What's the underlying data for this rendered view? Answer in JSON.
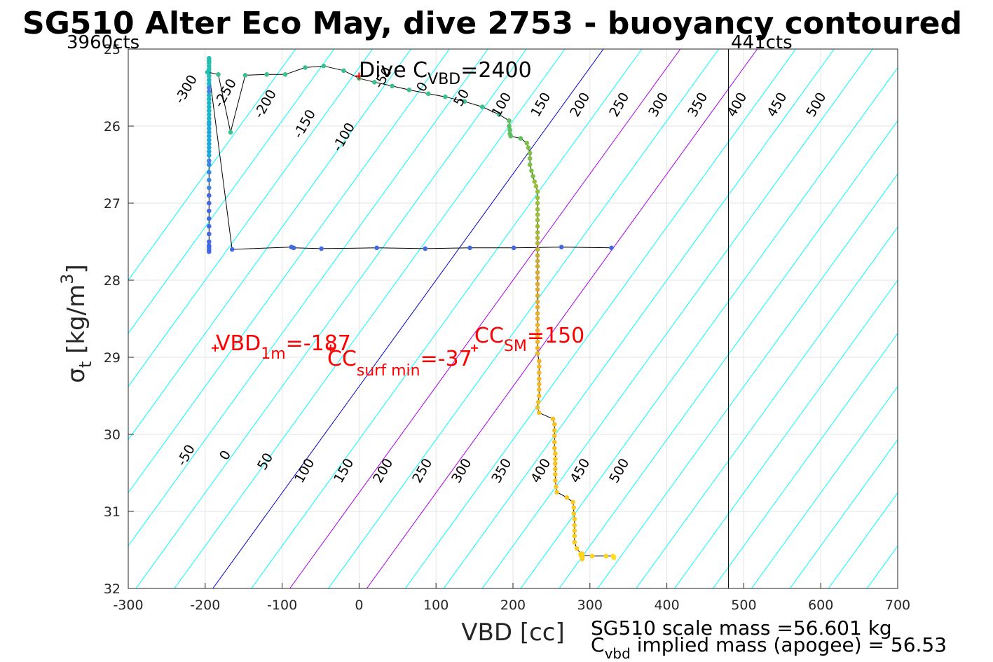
{
  "chart_data": {
    "type": "scatter",
    "title": "SG510 Alter Eco May, dive 2753 - buoyancy contoured",
    "xlabel": "VBD [cc]",
    "ylabel": {
      "main": "σ",
      "sub": "t",
      "rest": " [kg/m",
      "sup": "3",
      "end": "]"
    },
    "xlim": [
      -300,
      700
    ],
    "ylim": [
      25,
      32
    ],
    "y_reversed": true,
    "grid": true,
    "x_ticks": [
      "-300",
      "-200",
      "-100",
      "0",
      "100",
      "200",
      "300",
      "400",
      "500",
      "600",
      "700"
    ],
    "y_ticks": [
      "25",
      "26",
      "27",
      "28",
      "29",
      "30",
      "31",
      "32"
    ],
    "corner_left": "3960cts",
    "corner_right": "441cts",
    "vertical_line_x": 480,
    "buoyancy_contours": {
      "color_default": "#00ffff",
      "color_zero": "#0000cc",
      "color_highlight": "#aa00ee",
      "highlight_levels": [
        100,
        200
      ],
      "levels": [
        -400,
        -350,
        -300,
        -250,
        -200,
        -150,
        -100,
        -50,
        0,
        50,
        100,
        150,
        200,
        250,
        300,
        350,
        400,
        450,
        500,
        550,
        600,
        650,
        700,
        750,
        800,
        850,
        900,
        950,
        1000,
        1050
      ]
    },
    "contour_labels": [
      {
        "text": "-300",
        "x": -220,
        "y": 25.55
      },
      {
        "text": "-250",
        "x": -169,
        "y": 25.6
      },
      {
        "text": "-200",
        "x": -117,
        "y": 25.74
      },
      {
        "text": "-150",
        "x": -66,
        "y": 26.0
      },
      {
        "text": "-100",
        "x": -15,
        "y": 26.17
      },
      {
        "text": "-50",
        "x": 36,
        "y": 25.4
      },
      {
        "text": "0",
        "x": 87,
        "y": 25.52
      },
      {
        "text": "50",
        "x": 138,
        "y": 25.66
      },
      {
        "text": "100",
        "x": 190,
        "y": 25.75
      },
      {
        "text": "150",
        "x": 241,
        "y": 25.75
      },
      {
        "text": "200",
        "x": 292,
        "y": 25.75
      },
      {
        "text": "250",
        "x": 343,
        "y": 25.75
      },
      {
        "text": "300",
        "x": 394,
        "y": 25.75
      },
      {
        "text": "350",
        "x": 445,
        "y": 25.75
      },
      {
        "text": "400",
        "x": 496,
        "y": 25.75
      },
      {
        "text": "450",
        "x": 548,
        "y": 25.75
      },
      {
        "text": "500",
        "x": 599,
        "y": 25.75
      },
      {
        "text": "-50",
        "x": -220,
        "y": 30.3
      },
      {
        "text": "0",
        "x": -169,
        "y": 30.3
      },
      {
        "text": "50",
        "x": -117,
        "y": 30.38
      },
      {
        "text": "100",
        "x": -66,
        "y": 30.5
      },
      {
        "text": "150",
        "x": -15,
        "y": 30.5
      },
      {
        "text": "200",
        "x": 36,
        "y": 30.5
      },
      {
        "text": "250",
        "x": 87,
        "y": 30.5
      },
      {
        "text": "300",
        "x": 138,
        "y": 30.5
      },
      {
        "text": "350",
        "x": 190,
        "y": 30.5
      },
      {
        "text": "400",
        "x": 241,
        "y": 30.5
      },
      {
        "text": "450",
        "x": 292,
        "y": 30.5
      },
      {
        "text": "500",
        "x": 343,
        "y": 30.5
      }
    ],
    "series": [
      {
        "x": [
          -195,
          -195,
          -195,
          -195,
          -195,
          -195,
          -195,
          -195,
          -195,
          -195,
          -195,
          -195,
          -195,
          -195,
          -195,
          -195,
          -195,
          -195,
          -195,
          -195,
          -195,
          -195,
          -195,
          -195,
          -195,
          -195,
          -195,
          -195,
          -195,
          -195,
          -195,
          -195,
          -195,
          -195,
          -195,
          -195,
          -195,
          -195,
          -195,
          -165,
          -88,
          -85,
          -49,
          23,
          86,
          144,
          201,
          263,
          328
        ],
        "y": [
          27.63,
          27.6,
          27.57,
          27.55,
          27.5,
          27.4,
          27.3,
          27.2,
          27.1,
          27.0,
          26.9,
          26.8,
          26.7,
          26.6,
          26.5,
          26.45,
          26.38,
          26.33,
          26.28,
          26.23,
          26.18,
          26.13,
          26.08,
          26.03,
          25.98,
          25.95,
          25.9,
          25.85,
          25.8,
          25.75,
          25.7,
          25.65,
          25.6,
          25.55,
          25.5,
          25.45,
          25.4,
          25.35,
          25.3,
          27.6,
          27.57,
          27.58,
          27.59,
          27.58,
          27.59,
          27.58,
          27.58,
          27.57,
          27.58
        ],
        "colors": [
          "#4169e1",
          "#4169e1",
          "#4169e1",
          "#4169e1",
          "#4169e1",
          "#4169e1",
          "#4169e1",
          "#4169e1",
          "#4169e1",
          "#4169e1",
          "#4169e1",
          "#3a85e6",
          "#3a85e6",
          "#3a85e6",
          "#3a85e6",
          "#3a85e6",
          "#1aa8dd",
          "#1aa8dd",
          "#1aa8dd",
          "#1aa8dd",
          "#1aa8dd",
          "#1aa8dd",
          "#1aa8dd",
          "#1aa8dd",
          "#1aa8dd",
          "#1aa8dd",
          "#1ab6c8",
          "#1ab6c8",
          "#1ab6c8",
          "#1ab6c8",
          "#1ab6c8",
          "#1ab6c8",
          "#1ab6c8",
          "#3a85e6",
          "#3a85e6",
          "#1ab6c8",
          "#1ab6c8",
          "#22c0b0",
          "#22c0b0",
          "#4169e1",
          "#4169e1",
          "#4169e1",
          "#4169e1",
          "#4169e1",
          "#4169e1",
          "#4169e1",
          "#4169e1",
          "#4169e1",
          "#4169e1"
        ]
      },
      {
        "x": [
          -195,
          -195,
          -195,
          -195,
          -195,
          -197,
          -183,
          -167,
          -148,
          -120,
          -96,
          -70,
          -46,
          -20,
          0,
          20,
          43,
          65,
          90,
          112,
          137,
          160,
          182,
          195,
          195,
          196,
          196,
          197,
          210,
          218,
          220,
          222,
          222,
          222,
          224,
          226,
          228,
          230,
          232,
          232,
          232,
          232,
          232,
          232,
          232,
          232,
          232,
          232,
          232,
          232,
          232,
          232,
          232,
          232,
          232,
          232,
          232,
          232,
          232,
          232,
          232,
          232,
          232,
          232,
          232,
          232,
          232,
          234,
          234,
          234,
          234,
          234,
          234,
          234,
          233,
          232,
          234,
          252,
          254,
          254,
          254,
          254,
          254,
          255,
          255,
          255,
          255,
          255,
          255,
          256,
          257,
          270,
          278,
          279,
          279,
          280,
          280,
          280,
          280,
          280,
          283,
          288,
          290,
          290,
          290,
          290,
          290,
          290,
          288,
          303,
          321,
          330,
          331,
          331,
          331,
          331,
          331,
          331,
          331,
          331,
          331
        ],
        "y": [
          25.12,
          25.15,
          25.18,
          25.22,
          25.26,
          25.3,
          25.33,
          26.08,
          25.34,
          25.33,
          25.33,
          25.24,
          25.22,
          25.28,
          25.38,
          25.43,
          25.48,
          25.53,
          25.58,
          25.62,
          25.68,
          25.75,
          25.85,
          25.93,
          26.0,
          26.05,
          26.1,
          26.13,
          26.16,
          26.22,
          26.28,
          26.35,
          26.42,
          26.5,
          26.58,
          26.65,
          26.72,
          26.78,
          26.85,
          26.93,
          27.0,
          27.08,
          27.15,
          27.22,
          27.3,
          27.38,
          27.45,
          27.52,
          27.6,
          27.68,
          27.75,
          27.82,
          27.9,
          27.97,
          28.05,
          28.12,
          28.2,
          28.28,
          28.35,
          28.43,
          28.5,
          28.58,
          28.65,
          28.72,
          28.8,
          28.88,
          28.95,
          29.05,
          29.12,
          29.2,
          29.28,
          29.35,
          29.42,
          29.5,
          29.58,
          29.65,
          29.72,
          29.8,
          29.87,
          29.95,
          30.02,
          30.1,
          30.18,
          30.25,
          30.32,
          30.38,
          30.45,
          30.52,
          30.6,
          30.68,
          30.75,
          30.82,
          30.88,
          30.95,
          31.03,
          31.1,
          31.18,
          31.25,
          31.32,
          31.4,
          31.48,
          31.55,
          31.6,
          31.62,
          31.58,
          31.55,
          31.55,
          31.56,
          31.57,
          31.58,
          31.58,
          31.58,
          31.59,
          31.59,
          31.59,
          31.6,
          31.6,
          31.6,
          31.6,
          31.6,
          31.6
        ],
        "colors": [
          "#22c0b0",
          "#22c0b0",
          "#22c0b0",
          "#22c0b0",
          "#22c0b0",
          "#22c0b0",
          "#3cc08c",
          "#3cc08c",
          "#3cc08c",
          "#3cc08c",
          "#3cc08c",
          "#3cc08c",
          "#3cc08c",
          "#3cc08c",
          "#3cc08c",
          "#3cc08c",
          "#3cc08c",
          "#3cc08c",
          "#3cc08c",
          "#3cc08c",
          "#3cc08c",
          "#3cc08c",
          "#3cc08c",
          "#5ec060",
          "#5ec060",
          "#5ec060",
          "#5ec060",
          "#5ec060",
          "#5ec060",
          "#7ec048",
          "#7ec048",
          "#7ec048",
          "#7ec048",
          "#7ec048",
          "#7ec048",
          "#7ec048",
          "#9ac03a",
          "#9ac03a",
          "#9ac03a",
          "#9ac03a",
          "#9ac03a",
          "#9ac03a",
          "#9ac03a",
          "#9ac03a",
          "#a6b83c",
          "#a6b83c",
          "#b6b43a",
          "#b6b43a",
          "#c0b038",
          "#c8ac38",
          "#d0ac36",
          "#d4aa36",
          "#d8aa36",
          "#dcaa34",
          "#e0aa34",
          "#e0aa34",
          "#e4aa32",
          "#e4aa32",
          "#e8ac30",
          "#e8ac30",
          "#ecb02e",
          "#ecb02e",
          "#ecb02e",
          "#ecb02e",
          "#f0b42c",
          "#f0b42c",
          "#f0b42c",
          "#f0b42c",
          "#f2b82a",
          "#f2b82a",
          "#f2b82a",
          "#f2b82a",
          "#f4bc28",
          "#f4bc28",
          "#f4bc28",
          "#f4bc28",
          "#f4bc28",
          "#f6c026",
          "#f6c026",
          "#f6c026",
          "#f6c026",
          "#f6c026",
          "#f6c026",
          "#f8c424",
          "#f8c424",
          "#f8c424",
          "#f8c424",
          "#f8c424",
          "#f8c424",
          "#f8c824",
          "#f8c824",
          "#f8c824",
          "#f8c824",
          "#facc22",
          "#facc22",
          "#facc22",
          "#facc22",
          "#facc22",
          "#facc22",
          "#facc22",
          "#fad020",
          "#fad020",
          "#fad020",
          "#fad020",
          "#fad020",
          "#fad020",
          "#fad020",
          "#fad41e",
          "#fad41e",
          "#fad41e",
          "#fad41e",
          "#fcd81c",
          "#fcd81c",
          "#fcd81c",
          "#fcdc1a",
          "#fcdc1a",
          "#fcdc1a",
          "#fce018",
          "#fce018",
          "#fce018",
          "#fce018"
        ]
      }
    ],
    "markers": [
      {
        "label": "VBD_1m",
        "x": -187,
        "y": 28.88
      },
      {
        "label": "CC_surf_min",
        "x": -37,
        "y": 28.88
      },
      {
        "label": "CC_SM",
        "x": 150,
        "y": 28.88
      },
      {
        "label": "Dive C_VBD",
        "x": 0,
        "y": 25.35
      }
    ],
    "annotations": {
      "dive_cvbd": {
        "main": "Dive C",
        "sub": "VBD",
        "rest": "=2400"
      },
      "vbd_1m": {
        "main": "VBD",
        "sub": "1m",
        "rest": "=-187"
      },
      "cc_surf_min": {
        "main": "CC",
        "sub": "surf min",
        "rest": "=-37"
      },
      "cc_sm": {
        "main": "CC",
        "sub": "SM",
        "rest": "=150"
      }
    },
    "footer": {
      "line1": "SG510 scale mass =56.601 kg",
      "line2_main": "C",
      "line2_sub": "vbd",
      "line2_rest": " implied mass (apogee) = 56.53"
    }
  }
}
